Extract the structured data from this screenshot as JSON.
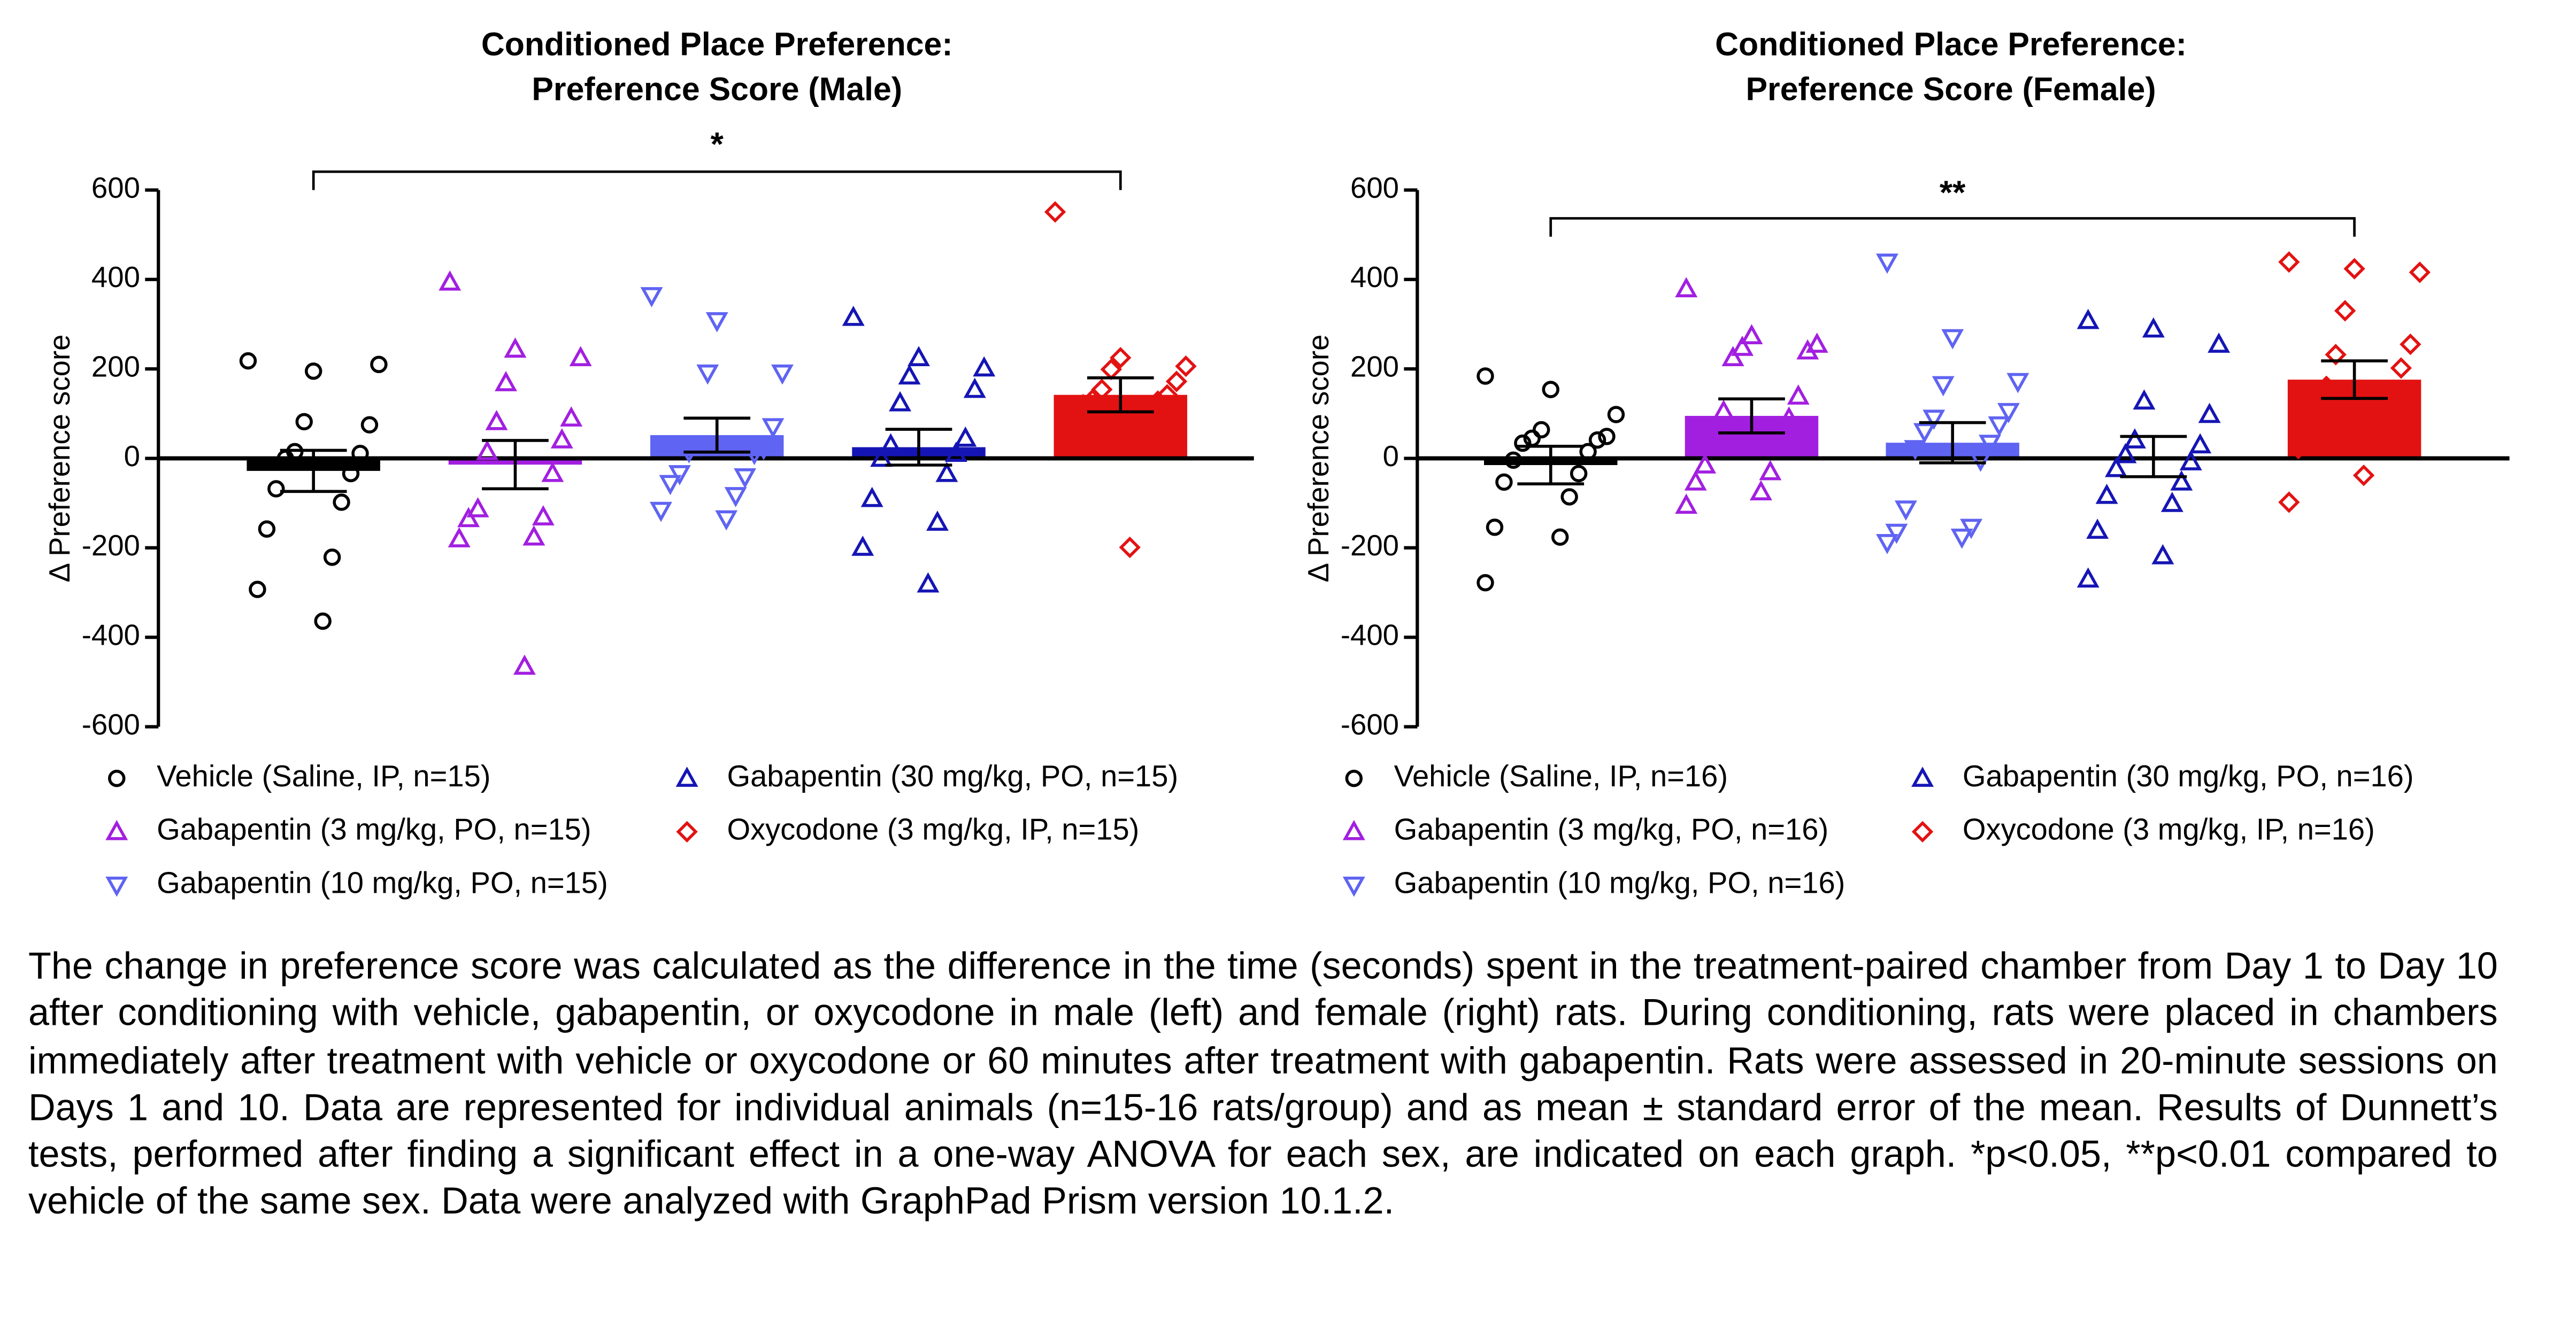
{
  "chart_data": [
    {
      "type": "bar",
      "title": [
        "Conditioned Place Preference:",
        "Preference Score (Male)"
      ],
      "y_label": "Δ Preference score",
      "ylim": [
        -600,
        600
      ],
      "yticks": [
        -600,
        -400,
        -200,
        0,
        200,
        400,
        600
      ],
      "significance": [
        {
          "label": "*",
          "from_series": 0,
          "to_series": 4
        }
      ],
      "series": [
        {
          "name": "Vehicle (Saline, IP, n=15)",
          "color": "#000000",
          "marker": "circle",
          "mean": -28,
          "sem": 46,
          "points": [
            218,
            195,
            210,
            82,
            75,
            15,
            11,
            0,
            -34,
            -68,
            -98,
            -158,
            -221,
            -293,
            -364
          ]
        },
        {
          "name": "Gabapentin (3 mg/kg, PO, n=15)",
          "color": "#a21fe0",
          "marker": "triangle-up",
          "mean": -14,
          "sem": 54,
          "points": [
            394,
            244,
            225,
            169,
            90,
            82,
            41,
            15,
            -34,
            -113,
            -131,
            -135,
            -176,
            -180,
            -465
          ]
        },
        {
          "name": "Gabapentin (10 mg/kg, PO, n=15)",
          "color": "#5f64f2",
          "marker": "triangle-down",
          "mean": 52,
          "sem": 38,
          "points": [
            364,
            308,
            191,
            191,
            71,
            30,
            22,
            15,
            11,
            -34,
            -41,
            -56,
            -83,
            -116,
            -135
          ]
        },
        {
          "name": "Gabapentin (30 mg/kg, PO, n=15)",
          "color": "#1515b5",
          "marker": "triangle-up",
          "mean": 25,
          "sem": 40,
          "points": [
            315,
            225,
            202,
            184,
            154,
            124,
            45,
            30,
            11,
            0,
            -34,
            -90,
            -143,
            -199,
            -281
          ]
        },
        {
          "name": "Oxycodone (3 mg/kg, IP, n=15)",
          "color": "#e31212",
          "marker": "diamond",
          "mean": 142,
          "sem": 38,
          "points": [
            551,
            225,
            206,
            199,
            172,
            154,
            142,
            131,
            128,
            120,
            101,
            90,
            79,
            68,
            -199
          ]
        }
      ]
    },
    {
      "type": "bar",
      "title": [
        "Conditioned Place Preference:",
        "Preference Score (Female)"
      ],
      "y_label": "Δ Preference score",
      "ylim": [
        -600,
        600
      ],
      "yticks": [
        -600,
        -400,
        -200,
        0,
        200,
        400,
        600
      ],
      "significance": [
        {
          "label": "**",
          "from_series": 0,
          "to_series": 4
        }
      ],
      "series": [
        {
          "name": "Vehicle (Saline, IP, n=16)",
          "color": "#000000",
          "marker": "circle",
          "mean": -15,
          "sem": 42,
          "points": [
            184,
            154,
            98,
            64,
            49,
            45,
            41,
            34,
            15,
            -4,
            -34,
            -53,
            -86,
            -154,
            -176,
            -278
          ]
        },
        {
          "name": "Gabapentin (3 mg/kg, PO, n=16)",
          "color": "#a21fe0",
          "marker": "triangle-up",
          "mean": 95,
          "sem": 38,
          "points": [
            379,
            274,
            255,
            248,
            240,
            225,
            139,
            105,
            90,
            68,
            45,
            -15,
            -30,
            -53,
            -75,
            -105
          ]
        },
        {
          "name": "Gabapentin (10 mg/kg, PO, n=16)",
          "color": "#5f64f2",
          "marker": "triangle-down",
          "mean": 35,
          "sem": 45,
          "points": [
            439,
            270,
            172,
            165,
            105,
            90,
            75,
            60,
            34,
            22,
            -4,
            -113,
            -154,
            -165,
            -176,
            -188
          ]
        },
        {
          "name": "Gabapentin (30 mg/kg, PO, n=16)",
          "color": "#1515b5",
          "marker": "triangle-up",
          "mean": 4,
          "sem": 45,
          "points": [
            308,
            289,
            255,
            128,
            98,
            41,
            30,
            8,
            -8,
            -23,
            -53,
            -83,
            -101,
            -161,
            -218,
            -270
          ]
        },
        {
          "name": "Oxycodone (3 mg/kg, IP, n=16)",
          "color": "#e31212",
          "marker": "diamond",
          "mean": 176,
          "sem": 42,
          "points": [
            439,
            424,
            416,
            330,
            255,
            232,
            202,
            161,
            139,
            113,
            90,
            79,
            30,
            22,
            -38,
            -98
          ]
        }
      ]
    }
  ],
  "caption": "The change in preference score was calculated as the difference in the time (seconds) spent in the treatment-paired chamber from Day 1 to Day 10 after conditioning with vehicle, gabapentin, or oxycodone in male (left) and female (right) rats. During conditioning, rats were placed in chambers immediately after treatment with vehicle or oxycodone or 60 minutes after treatment with gabapentin. Rats were assessed in 20-minute sessions on Days 1 and 10. Data are represented for individual animals (n=15-16 rats/group) and as mean ± standard error of the mean. Results of Dunnett’s tests, performed after finding a significant effect in a one-way ANOVA for each sex, are indicated on each graph. *p<0.05, **p<0.01 compared to vehicle of the same sex. Data were analyzed with GraphPad Prism version 10.1.2."
}
